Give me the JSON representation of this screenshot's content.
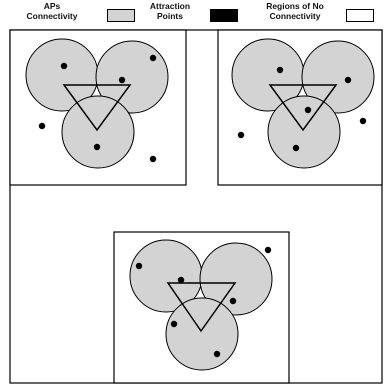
{
  "legend": {
    "items": [
      {
        "label": "APs\nConnectivity",
        "color": "#d3d3d3"
      },
      {
        "label": "Attraction\nPoints",
        "color": "#000000"
      },
      {
        "label": "Regions of No\nConnectivity",
        "color": "#ffffff"
      }
    ]
  },
  "colors": {
    "circle_fill": "#d3d3d3",
    "stroke": "#000000",
    "point": "#000000",
    "background": "#ffffff"
  }
}
